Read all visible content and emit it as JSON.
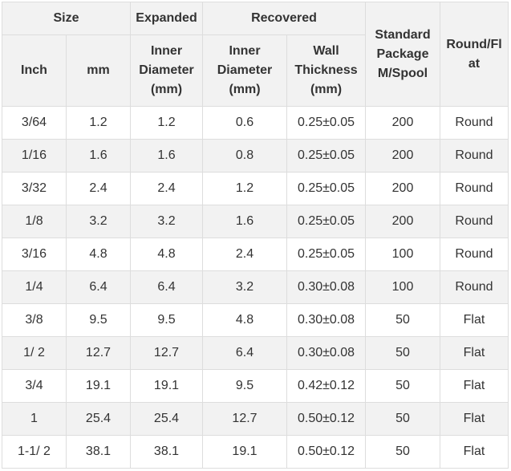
{
  "headers": {
    "size": "Size",
    "expanded": "Expanded",
    "recovered": "Recovered",
    "standard_package": "Standard Package M/Spool",
    "round_flat": "Round/Flat",
    "inch": "Inch",
    "mm": "mm",
    "expanded_inner_diameter": "Inner Diameter (mm)",
    "recovered_inner_diameter": "Inner Diameter (mm)",
    "wall_thickness": "Wall Thickness (mm)"
  },
  "rows": [
    [
      "3/64",
      "1.2",
      "1.2",
      "0.6",
      "0.25±0.05",
      "200",
      "Round"
    ],
    [
      "1/16",
      "1.6",
      "1.6",
      "0.8",
      "0.25±0.05",
      "200",
      "Round"
    ],
    [
      "3/32",
      "2.4",
      "2.4",
      "1.2",
      "0.25±0.05",
      "200",
      "Round"
    ],
    [
      "1/8",
      "3.2",
      "3.2",
      "1.6",
      "0.25±0.05",
      "200",
      "Round"
    ],
    [
      "3/16",
      "4.8",
      "4.8",
      "2.4",
      "0.25±0.05",
      "100",
      "Round"
    ],
    [
      "1/4",
      "6.4",
      "6.4",
      "3.2",
      "0.30±0.08",
      "100",
      "Round"
    ],
    [
      "3/8",
      "9.5",
      "9.5",
      "4.8",
      "0.30±0.08",
      "50",
      "Flat"
    ],
    [
      "1/ 2",
      "12.7",
      "12.7",
      "6.4",
      "0.30±0.08",
      "50",
      "Flat"
    ],
    [
      "3/4",
      "19.1",
      "19.1",
      "9.5",
      "0.42±0.12",
      "50",
      "Flat"
    ],
    [
      "1",
      "25.4",
      "25.4",
      "12.7",
      "0.50±0.12",
      "50",
      "Flat"
    ],
    [
      "1-1/ 2",
      "38.1",
      "38.1",
      "19.1",
      "0.50±0.12",
      "50",
      "Flat"
    ]
  ]
}
